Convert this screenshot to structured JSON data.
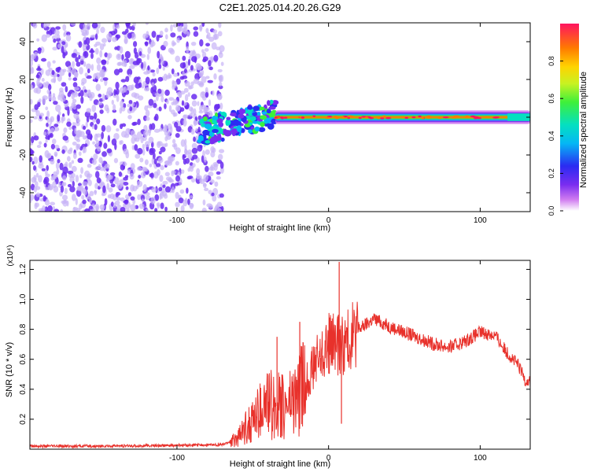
{
  "title": "C2E1.2025.014.20.26.G29",
  "colors": {
    "background": "#ffffff",
    "axis": "#000000",
    "snr_line": "#e8312b",
    "scatter": "#6a2cf0",
    "scatter_faint": "#c7b4f7"
  },
  "chart_data": [
    {
      "type": "heatmap",
      "name": "spectrogram",
      "xlabel": "Height of straight line (km)",
      "ylabel": "Frequency (Hz)",
      "xlim": [
        -197,
        133
      ],
      "ylim": [
        -50,
        50
      ],
      "xticks": [
        -100,
        0,
        100
      ],
      "yticks": [
        -40,
        -20,
        0,
        20,
        40
      ],
      "colorbar": {
        "label": "Normalized spectral amplitude",
        "range": [
          0,
          1
        ],
        "ticks": [
          0.0,
          0.2,
          0.4,
          0.6,
          0.8
        ]
      },
      "features": [
        {
          "x_range": [
            -197,
            -70
          ],
          "y_range": [
            -50,
            50
          ],
          "amplitude": 0.05
        },
        {
          "x_range": [
            -85,
            -35
          ],
          "y_range": [
            -12,
            10
          ],
          "amplitude": 0.25
        },
        {
          "x_range": [
            -35,
            133
          ],
          "y_range": [
            -3,
            3
          ],
          "amplitude": 0.9
        }
      ]
    },
    {
      "type": "line",
      "name": "snr",
      "xlabel": "Height of straight line (km)",
      "ylabel": "SNR (10 * v/v)",
      "y_multiplier": "(x10⁴)",
      "xlim": [
        -197,
        133
      ],
      "ylim": [
        0,
        1.26
      ],
      "xticks": [
        -100,
        0,
        100
      ],
      "yticks": [
        0.2,
        0.4,
        0.6,
        0.8,
        1.0,
        1.2
      ],
      "envelope": {
        "x": [
          -197,
          -150,
          -100,
          -70,
          -60,
          -50,
          -40,
          -30,
          -20,
          -10,
          0,
          10,
          20,
          30,
          40,
          50,
          60,
          70,
          80,
          90,
          100,
          110,
          115,
          120,
          125,
          130,
          133
        ],
        "y": [
          0.02,
          0.02,
          0.025,
          0.03,
          0.07,
          0.2,
          0.3,
          0.28,
          0.35,
          0.55,
          0.7,
          0.7,
          0.8,
          0.87,
          0.82,
          0.78,
          0.74,
          0.7,
          0.68,
          0.72,
          0.78,
          0.76,
          0.68,
          0.62,
          0.56,
          0.46,
          0.45
        ]
      },
      "spikes": [
        {
          "x": 7,
          "y": 1.25
        },
        {
          "x": 8.5,
          "y": 0.17
        },
        {
          "x": -19,
          "y": 0.85
        },
        {
          "x": -34,
          "y": 0.75
        }
      ]
    }
  ]
}
